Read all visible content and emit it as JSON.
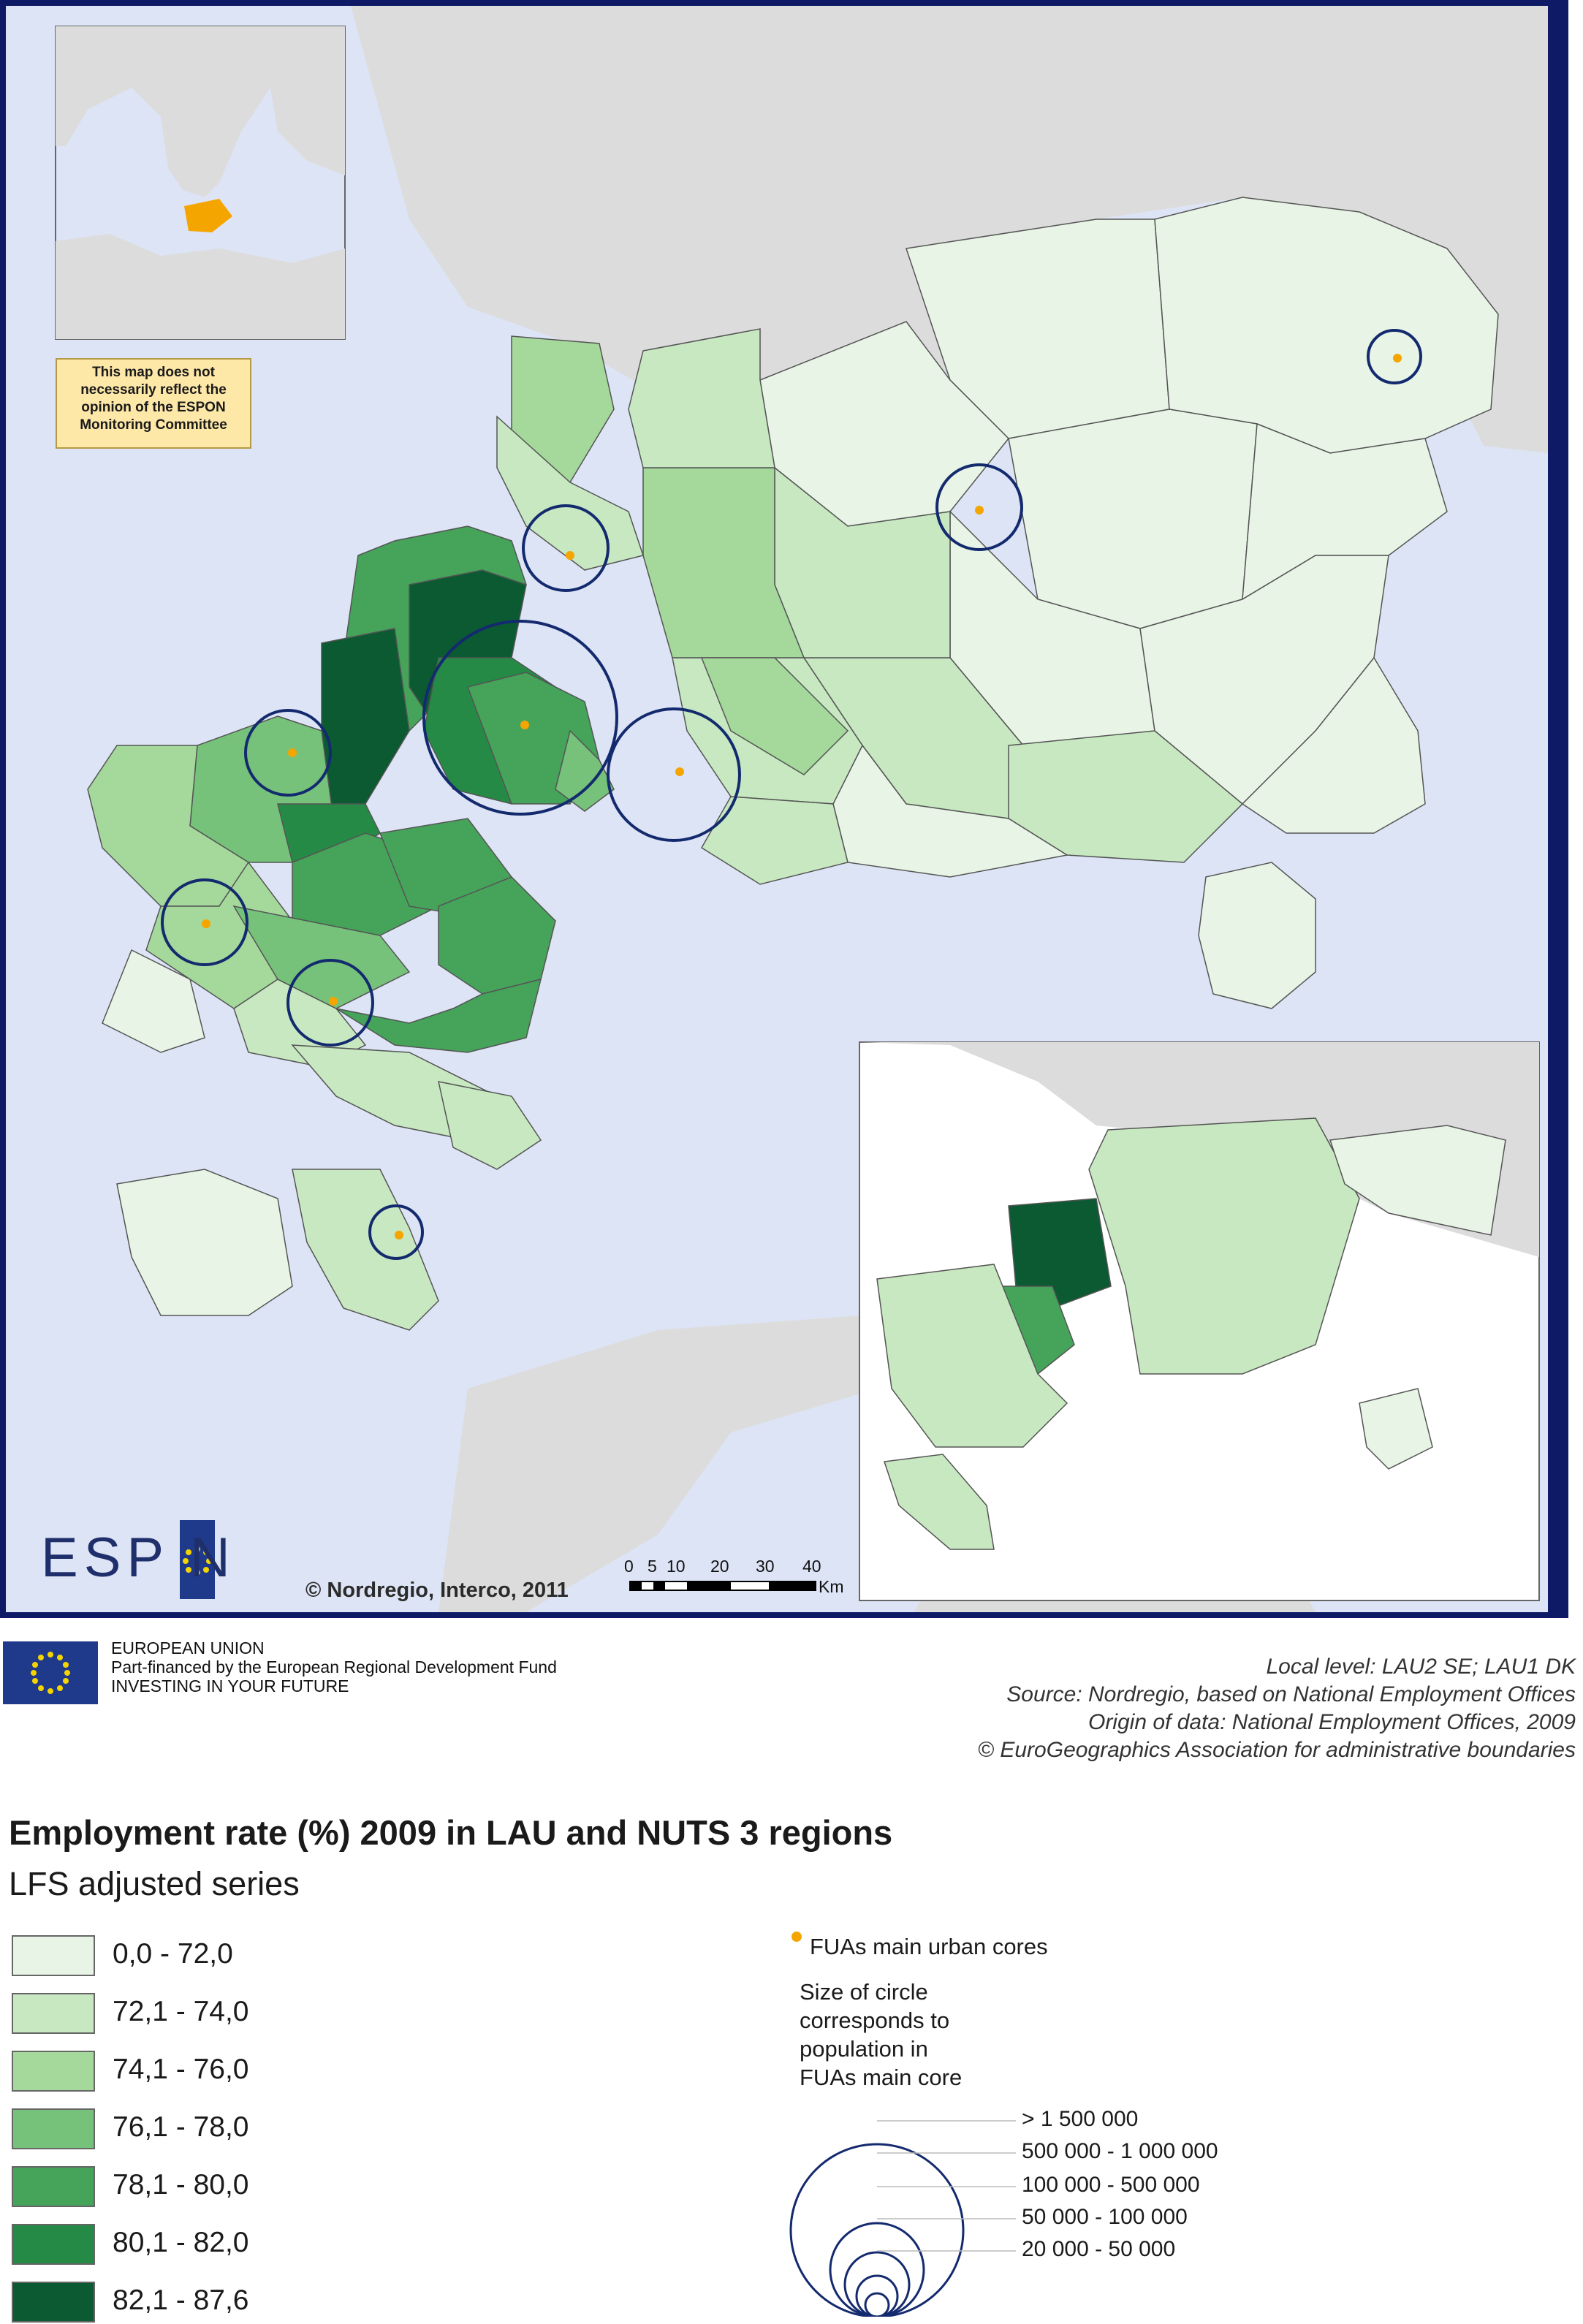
{
  "disclaimer": "This map does not necessarily reflect the opinion of the ESPON Monitoring Committee",
  "logo": {
    "text": "ESP N",
    "stars_icon": "eu-stars-icon"
  },
  "copyright": "© Nordregio, Interco, 2011",
  "scalebar": {
    "ticks": [
      "0",
      "5",
      "10",
      "20",
      "30",
      "40"
    ],
    "unit": "Km"
  },
  "eu": {
    "line1": "EUROPEAN UNION",
    "line2": "Part-financed by the European Regional Development Fund",
    "line3": "INVESTING IN YOUR FUTURE"
  },
  "sources": [
    "Local level: LAU2 SE; LAU1 DK",
    "Source: Nordregio, based on National Employment Offices",
    "Origin of data: National Employment Offices, 2009",
    "© EuroGeographics Association for administrative boundaries"
  ],
  "title": "Employment rate (%) 2009 in LAU and NUTS 3 regions",
  "subtitle": "LFS adjusted series",
  "legend": [
    {
      "label": "0,0 - 72,0",
      "color": "#e8f5e6"
    },
    {
      "label": "72,1 - 74,0",
      "color": "#c7e8c1"
    },
    {
      "label": "74,1 - 76,0",
      "color": "#a4d99b"
    },
    {
      "label": "76,1 - 78,0",
      "color": "#76c27a"
    },
    {
      "label": "78,1 - 80,0",
      "color": "#45a35a"
    },
    {
      "label": "80,1 - 82,0",
      "color": "#258a45"
    },
    {
      "label": "82,1 - 87,6",
      "color": "#0b5a32"
    }
  ],
  "fua_legend": {
    "dot_label": "FUAs main urban cores",
    "dot_color": "#f5a500",
    "size_note": [
      "Size of circle",
      "corresponds to",
      "population in",
      "FUAs main core"
    ],
    "circle_classes": [
      "> 1 500 000",
      "500 000 - 1 000 000",
      "100 000 - 500 000",
      "50 000 - 100 000",
      "20 000 - 50 000"
    ],
    "circle_color": "#142a6e"
  },
  "colors": {
    "sea": "#dde4f5",
    "land_other": "#dcdcdc",
    "frame": "#0f1a66",
    "highlight": "#f5a500"
  }
}
